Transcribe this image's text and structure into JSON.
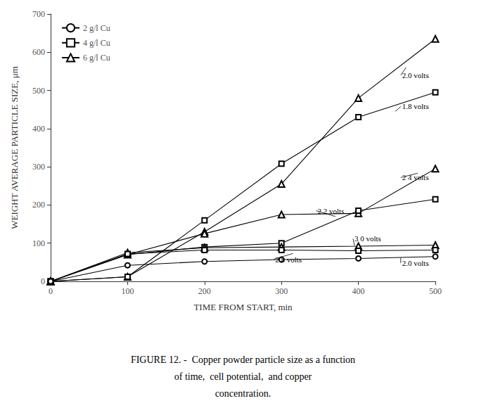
{
  "chart_data": {
    "type": "line",
    "xlabel": "TIME FROM START, min",
    "ylabel": "WEIGHT AVERAGE PARTICLE SIZE, μm",
    "caption": [
      "FIGURE 12. -  Copper powder particle size as a function",
      "of time,  cell potential,  and copper",
      "concentration."
    ],
    "x": [
      0,
      100,
      200,
      300,
      400,
      500
    ],
    "xlim": [
      0,
      500
    ],
    "ylim": [
      0,
      700
    ],
    "xticks": [
      0,
      100,
      200,
      300,
      400,
      500
    ],
    "yticks": [
      0,
      100,
      200,
      300,
      400,
      500,
      600,
      700
    ],
    "grid": false,
    "legend": "upper left",
    "color": "#000000",
    "series": [
      {
        "name": "6 g/l Cu",
        "marker": "triangle",
        "values": [
          0,
          12,
          130,
          255,
          480,
          635
        ]
      },
      {
        "name": "4 g/l Cu",
        "marker": "square",
        "values": [
          0,
          12,
          160,
          308,
          430,
          495
        ]
      },
      {
        "name": "6 g/l Cu",
        "marker": "triangle",
        "values": [
          0,
          70,
          125,
          175,
          178,
          295
        ]
      },
      {
        "name": "4 g/l Cu",
        "marker": "square",
        "values": [
          0,
          70,
          90,
          100,
          185,
          215
        ]
      },
      {
        "name": "6 g/l Cu",
        "marker": "triangle",
        "values": [
          0,
          75,
          88,
          90,
          92,
          95
        ]
      },
      {
        "name": "4 g/l Cu",
        "marker": "square",
        "values": [
          0,
          72,
          82,
          82,
          80,
          82
        ]
      },
      {
        "name": "2 g/l Cu",
        "marker": "circle",
        "values": [
          0,
          42,
          52,
          57,
          60,
          65
        ]
      }
    ],
    "annotations": [
      {
        "text": "2.0 volts",
        "xy": [
          462,
          560
        ],
        "xytext": [
          455,
          540
        ]
      },
      {
        "text": "1.8 volts",
        "xy": [
          448,
          445
        ],
        "xytext": [
          455,
          458
        ]
      },
      {
        "text": "2 4 volts",
        "xy": [
          477,
          283
        ],
        "xytext": [
          455,
          272
        ]
      },
      {
        "text": "2 2 volts",
        "xy": [
          370,
          170
        ],
        "xytext": [
          345,
          185
        ]
      },
      {
        "text": "3 0 volts",
        "xy": [
          395,
          93
        ],
        "xytext": [
          393,
          112
        ]
      },
      {
        "text": "2 8 volts",
        "xy": [
          315,
          73
        ],
        "xytext": [
          290,
          58
        ]
      },
      {
        "text": "2.0 volts",
        "xy": [
          455,
          62
        ],
        "xytext": [
          455,
          48
        ]
      }
    ]
  }
}
